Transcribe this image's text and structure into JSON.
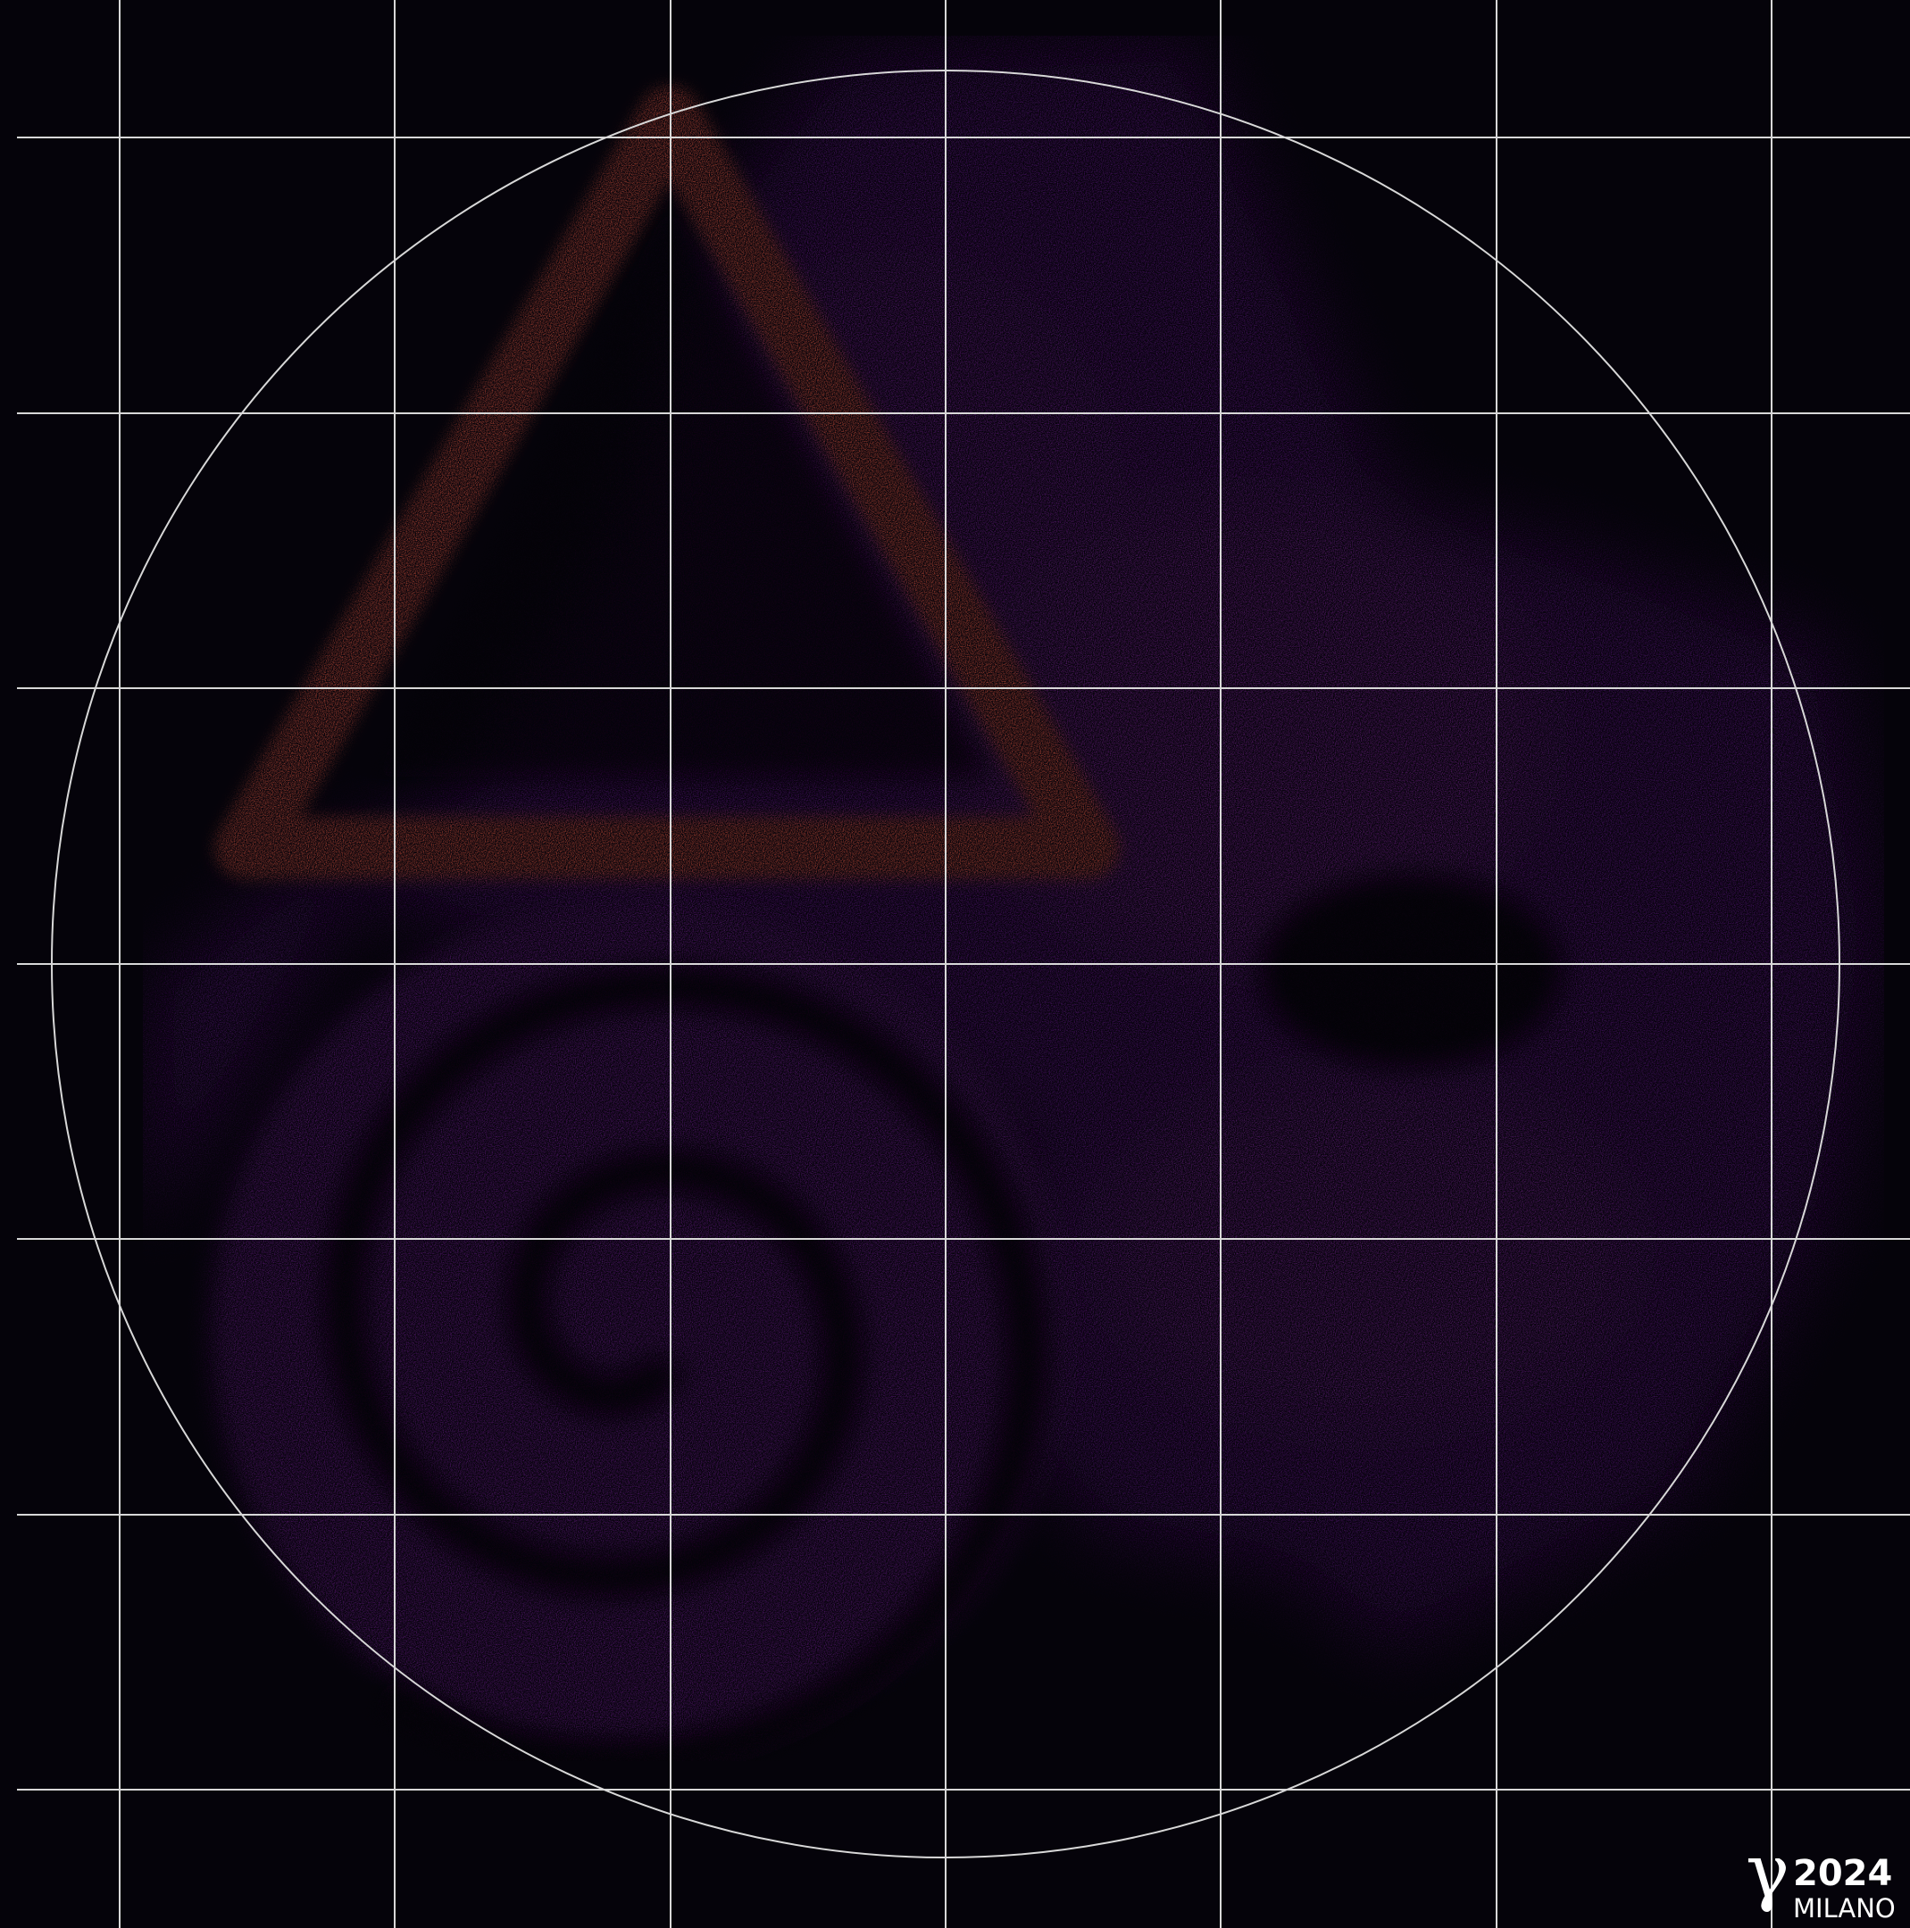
{
  "logo": {
    "symbol": "γ",
    "year": "2024",
    "city": "MILANO"
  }
}
